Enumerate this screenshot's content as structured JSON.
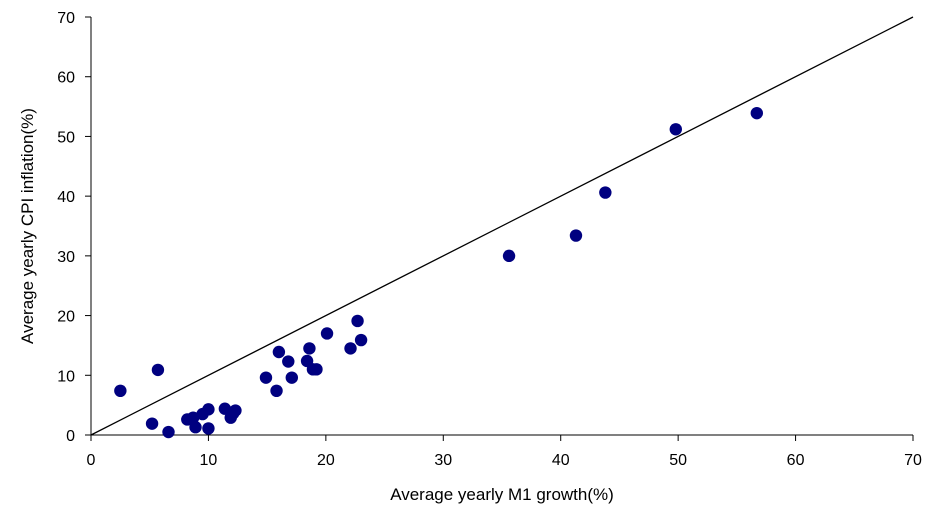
{
  "chart_data": {
    "type": "scatter",
    "xlabel": "Average yearly M1 growth(%)",
    "ylabel": "Average yearly CPI inflation(%)",
    "xlim": [
      0,
      70
    ],
    "ylim": [
      0,
      70
    ],
    "xticks": [
      "0",
      "10",
      "20",
      "30",
      "40",
      "50",
      "60",
      "70"
    ],
    "yticks": [
      "0",
      "10",
      "20",
      "30",
      "40",
      "50",
      "60",
      "70"
    ],
    "grid": false,
    "legend": "none",
    "marker_color": "#000080",
    "reference_line": {
      "from": [
        0,
        0
      ],
      "to": [
        70,
        70
      ],
      "color": "#000000"
    },
    "points": [
      {
        "x": 2.5,
        "y": 7.4
      },
      {
        "x": 5.2,
        "y": 1.9
      },
      {
        "x": 5.7,
        "y": 10.9
      },
      {
        "x": 6.6,
        "y": 0.5
      },
      {
        "x": 8.2,
        "y": 2.6
      },
      {
        "x": 8.7,
        "y": 2.9
      },
      {
        "x": 8.9,
        "y": 1.3
      },
      {
        "x": 9.5,
        "y": 3.5
      },
      {
        "x": 10.0,
        "y": 4.3
      },
      {
        "x": 10.0,
        "y": 1.1
      },
      {
        "x": 11.4,
        "y": 4.4
      },
      {
        "x": 11.9,
        "y": 2.9
      },
      {
        "x": 12.1,
        "y": 3.6
      },
      {
        "x": 12.3,
        "y": 4.1
      },
      {
        "x": 14.9,
        "y": 9.6
      },
      {
        "x": 15.8,
        "y": 7.4
      },
      {
        "x": 16.0,
        "y": 13.9
      },
      {
        "x": 16.8,
        "y": 12.3
      },
      {
        "x": 17.1,
        "y": 9.6
      },
      {
        "x": 18.4,
        "y": 12.4
      },
      {
        "x": 18.6,
        "y": 14.5
      },
      {
        "x": 18.9,
        "y": 11.0
      },
      {
        "x": 19.2,
        "y": 11.0
      },
      {
        "x": 20.1,
        "y": 17.0
      },
      {
        "x": 22.1,
        "y": 14.5
      },
      {
        "x": 22.7,
        "y": 19.1
      },
      {
        "x": 23.0,
        "y": 15.9
      },
      {
        "x": 35.6,
        "y": 30.0
      },
      {
        "x": 41.3,
        "y": 33.4
      },
      {
        "x": 43.8,
        "y": 40.6
      },
      {
        "x": 49.8,
        "y": 51.2
      },
      {
        "x": 56.7,
        "y": 53.9
      }
    ]
  }
}
